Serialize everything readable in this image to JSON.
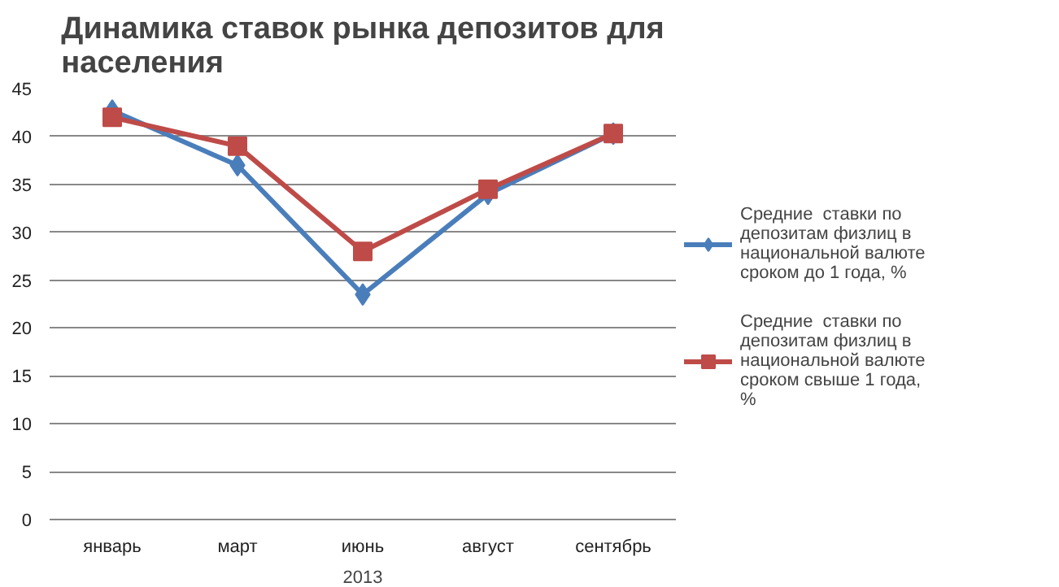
{
  "chart_data": {
    "type": "line",
    "title": "Динамика ставок рынка депозитов для населения",
    "xlabel": "2013",
    "categories": [
      "январь",
      "март",
      "июнь",
      "август",
      "сентябрь"
    ],
    "series": [
      {
        "name": "Средние  ставки по депозитам физлиц в национальной валюте сроком до 1 года, %",
        "color": "#4a7ebb",
        "marker": "diamond",
        "values": [
          42.7,
          37,
          23.5,
          34,
          40.3
        ]
      },
      {
        "name": "Средние  ставки по депозитам физлиц в национальной валюте сроком свыше 1 года, %",
        "color": "#be4b48",
        "marker": "square",
        "values": [
          42,
          39,
          28,
          34.5,
          40.3
        ]
      }
    ],
    "ylim": [
      0,
      45
    ],
    "yticks": [
      0,
      5,
      10,
      15,
      20,
      25,
      30,
      35,
      40,
      45
    ],
    "grid": "y",
    "legend": "right",
    "line_style": "solid"
  }
}
